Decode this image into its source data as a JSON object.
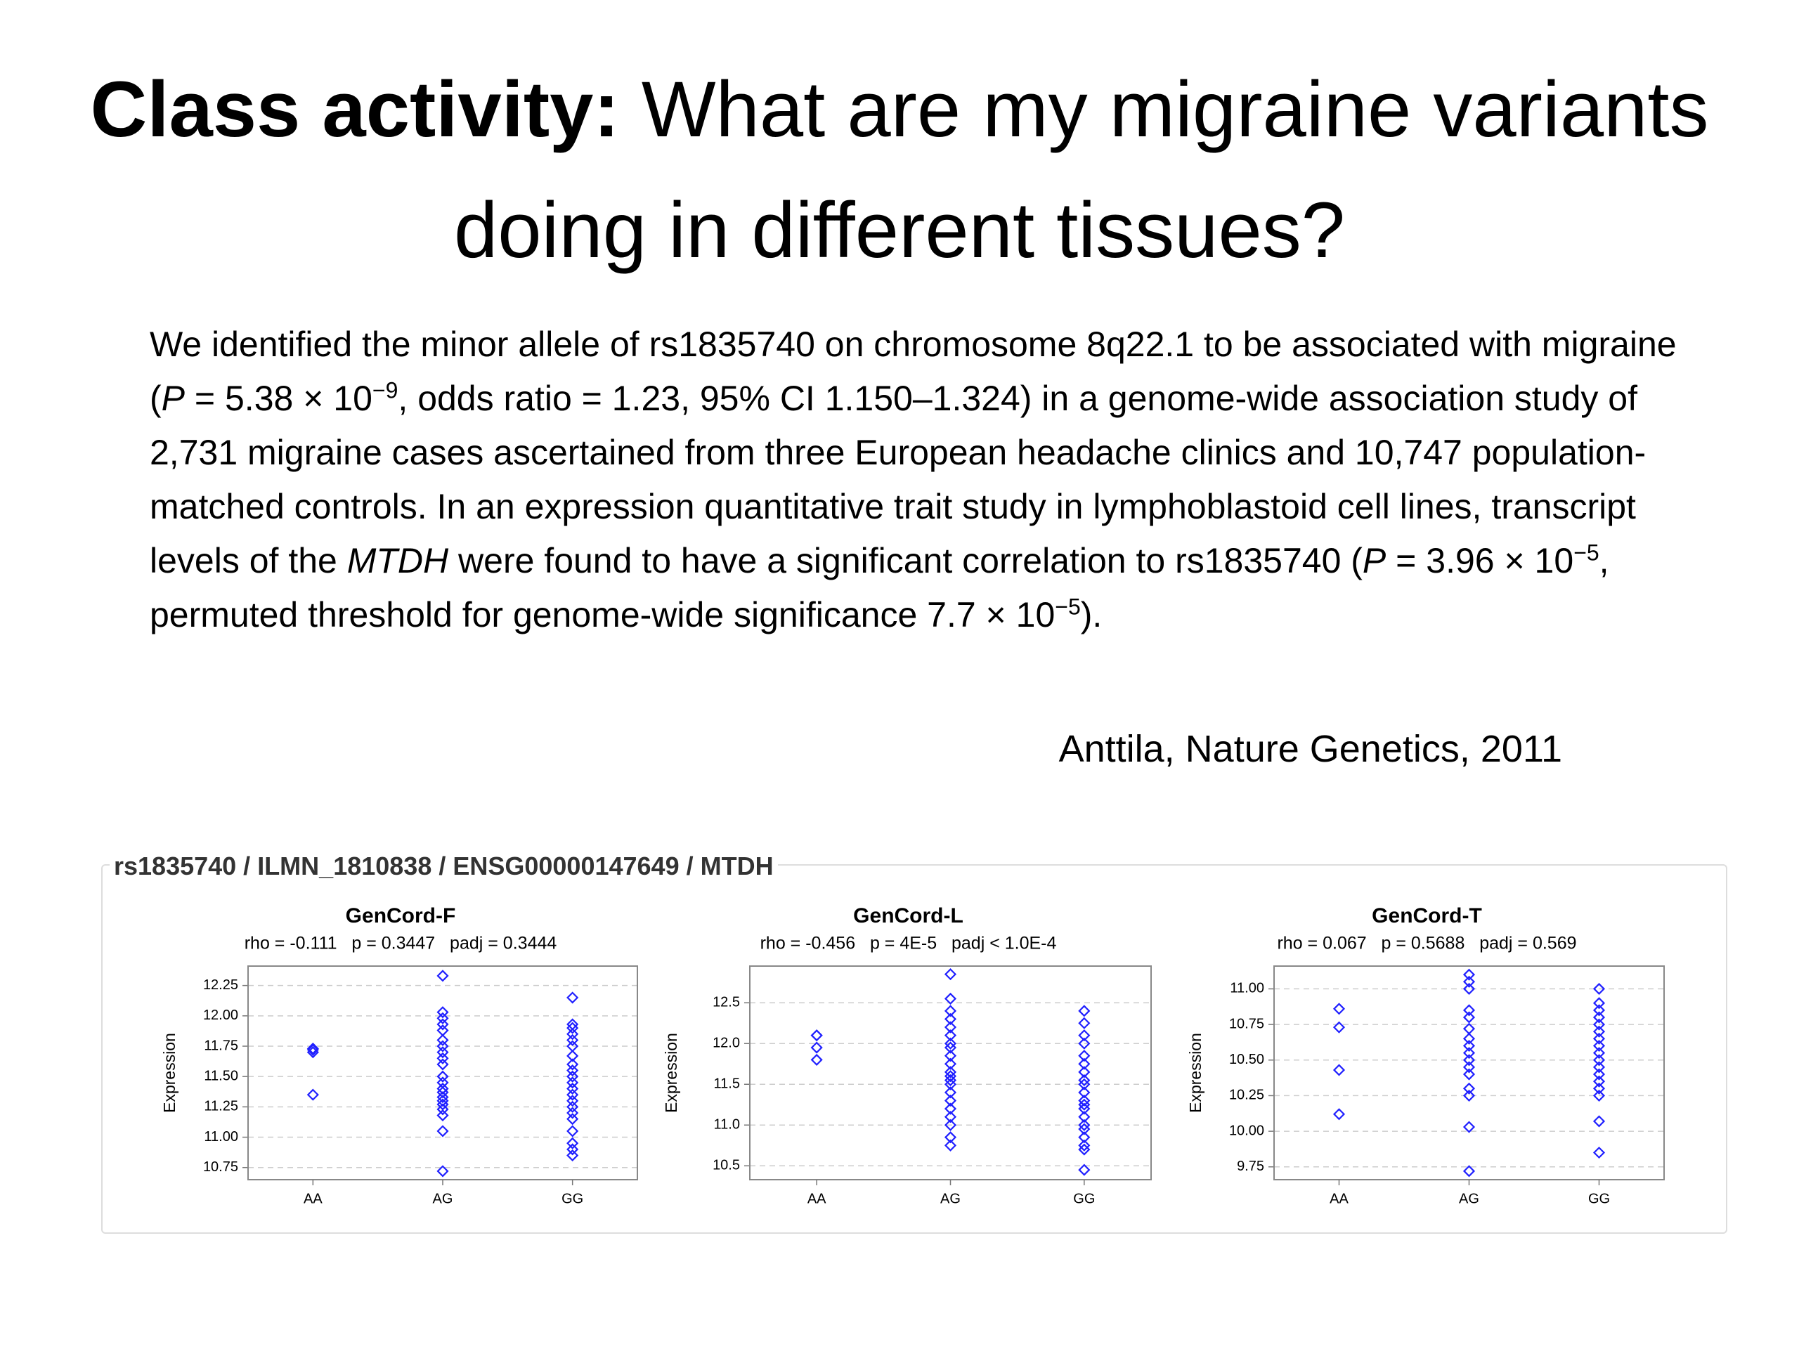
{
  "title": [
    {
      "text": "Class activity:",
      "style": "bold"
    },
    {
      "text": " What are my migraine variants doing in different tissues?",
      "style": "normal"
    }
  ],
  "body": [
    {
      "text": "We identified the minor allele of rs1835740 on chromosome 8q22.1 to be associated with migraine (",
      "style": "normal"
    },
    {
      "text": "P",
      "style": "italic"
    },
    {
      "text": " = 5.38 × 10",
      "style": "normal"
    },
    {
      "text": "−9",
      "style": "sup"
    },
    {
      "text": ", odds ratio = 1.23, 95% CI 1.150–1.324) in a genome-wide association study of 2,731 migraine cases ascertained from three European headache clinics and 10,747 population-matched controls. In an expression quantitative trait study in lymphoblastoid cell lines, transcript levels of the ",
      "style": "normal"
    },
    {
      "text": "MTDH",
      "style": "italic"
    },
    {
      "text": " were found to have a significant correlation to rs1835740 (",
      "style": "normal"
    },
    {
      "text": "P",
      "style": "italic"
    },
    {
      "text": " = 3.96 × 10",
      "style": "normal"
    },
    {
      "text": "−5",
      "style": "sup"
    },
    {
      "text": ", permuted threshold for genome-wide significance 7.7 × 10",
      "style": "normal"
    },
    {
      "text": "−5",
      "style": "sup"
    },
    {
      "text": ").",
      "style": "normal"
    }
  ],
  "citation": "Anttila, Nature Genetics, 2011",
  "figure_title": "rs1835740 / ILMN_1810838 / ENSG00000147649 / MTDH",
  "chart_data": [
    {
      "type": "strip",
      "title": "GenCord-F",
      "subtitle": "rho = -0.111   p = 0.3447   padj = 0.3444",
      "y_label": "Expression",
      "categories": [
        "AA",
        "AG",
        "GG"
      ],
      "color": "#2020ff",
      "grid": true,
      "ylim": [
        10.65,
        12.41
      ],
      "yticks": [
        {
          "value": 10.75,
          "label": "10.75"
        },
        {
          "value": 11,
          "label": "11.00"
        },
        {
          "value": 11.25,
          "label": "11.25"
        },
        {
          "value": 11.5,
          "label": "11.50"
        },
        {
          "value": 11.75,
          "label": "11.75"
        },
        {
          "value": 12,
          "label": "12.00"
        },
        {
          "value": 12.25,
          "label": "12.25"
        }
      ],
      "groups": [
        [
          11.73,
          11.72,
          11.7,
          11.35
        ],
        [
          12.33,
          12.03,
          11.98,
          11.93,
          11.88,
          11.8,
          11.75,
          11.7,
          11.65,
          11.6,
          11.5,
          11.45,
          11.4,
          11.37,
          11.33,
          11.3,
          11.27,
          11.23,
          11.18,
          11.05,
          10.72
        ],
        [
          12.15,
          11.93,
          11.9,
          11.85,
          11.8,
          11.75,
          11.67,
          11.6,
          11.55,
          11.5,
          11.45,
          11.4,
          11.35,
          11.3,
          11.25,
          11.2,
          11.15,
          11.05,
          10.95,
          10.9,
          10.85
        ]
      ]
    },
    {
      "type": "strip",
      "title": "GenCord-L",
      "subtitle": "rho = -0.456   p = 4E-5   padj < 1.0E-4",
      "y_label": "Expression",
      "categories": [
        "AA",
        "AG",
        "GG"
      ],
      "color": "#2020ff",
      "grid": true,
      "ylim": [
        10.33,
        12.95
      ],
      "yticks": [
        10.5,
        {
          "value": 11,
          "label": "11.0"
        },
        11.5,
        {
          "value": 12,
          "label": "12.0"
        },
        12.5
      ],
      "groups": [
        [
          12.1,
          12.1,
          11.95,
          11.8
        ],
        [
          12.85,
          12.55,
          12.4,
          12.3,
          12.2,
          12.1,
          12.0,
          11.95,
          11.85,
          11.75,
          11.65,
          11.6,
          11.55,
          11.5,
          11.4,
          11.3,
          11.2,
          11.1,
          11.0,
          10.85,
          10.75
        ],
        [
          12.4,
          12.25,
          12.1,
          12.0,
          11.85,
          11.75,
          11.65,
          11.55,
          11.5,
          11.4,
          11.3,
          11.25,
          11.2,
          11.1,
          11.0,
          10.95,
          10.85,
          10.75,
          10.7,
          10.45
        ]
      ]
    },
    {
      "type": "strip",
      "title": "GenCord-T",
      "subtitle": "rho = 0.067   p = 0.5688   padj = 0.569",
      "y_label": "Expression",
      "categories": [
        "AA",
        "AG",
        "GG"
      ],
      "color": "#2020ff",
      "grid": true,
      "ylim": [
        9.66,
        11.16
      ],
      "yticks": [
        9.75,
        {
          "value": 10,
          "label": "10.00"
        },
        10.25,
        {
          "value": 10.5,
          "label": "10.50"
        },
        10.75,
        {
          "value": 11,
          "label": "11.00"
        }
      ],
      "groups": [
        [
          10.86,
          10.73,
          10.43,
          10.12
        ],
        [
          11.1,
          11.05,
          11.0,
          10.85,
          10.8,
          10.72,
          10.65,
          10.6,
          10.55,
          10.5,
          10.45,
          10.4,
          10.3,
          10.25,
          10.03,
          9.72
        ],
        [
          11.0,
          10.9,
          10.85,
          10.8,
          10.75,
          10.7,
          10.65,
          10.6,
          10.55,
          10.5,
          10.45,
          10.4,
          10.35,
          10.3,
          10.25,
          10.07,
          9.85
        ]
      ]
    }
  ]
}
